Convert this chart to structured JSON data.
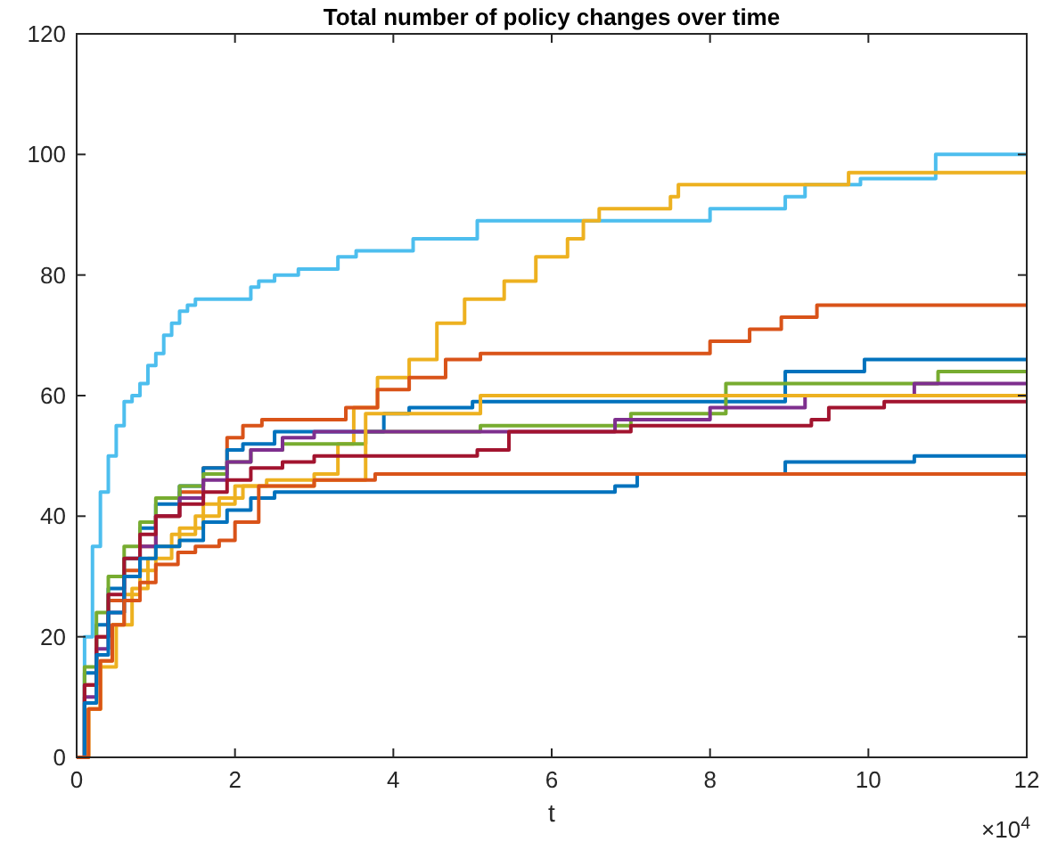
{
  "chart_data": {
    "type": "step",
    "title": "Total number of policy changes over time",
    "xlabel": "t",
    "annotations": [
      "×10$^{4}$"
    ],
    "xlim": [
      0,
      12
    ],
    "xticks": [
      0,
      2,
      4,
      6,
      8,
      10,
      12
    ],
    "ylim": [
      0,
      120
    ],
    "yticks": [
      0,
      20,
      40,
      60,
      80,
      100,
      120
    ],
    "grid": false,
    "line_style": "solid",
    "series": [
      {
        "color": "#4dbeee",
        "x": [
          0,
          0.1,
          0.2,
          0.3,
          0.4,
          0.5,
          0.6,
          0.7,
          0.8,
          0.9,
          1.0,
          1.1,
          1.2,
          1.3,
          1.4,
          1.5,
          2.1,
          2.2,
          2.3,
          2.5,
          2.8,
          3.3,
          3.53,
          4.25,
          5.06,
          6.5,
          8.0,
          8.95,
          9.2,
          9.9,
          10.85,
          12
        ],
        "values": [
          0,
          20,
          35,
          44,
          50,
          55,
          59,
          60,
          62,
          65,
          67,
          70,
          72,
          74,
          75,
          76,
          76,
          78,
          79,
          80,
          81,
          83,
          84,
          86,
          89,
          89,
          91,
          93,
          95,
          96,
          100,
          100
        ]
      },
      {
        "color": "#edb120",
        "x": [
          0,
          0.15,
          0.3,
          0.45,
          0.6,
          0.8,
          1.0,
          1.3,
          1.6,
          2.0,
          2.4,
          3.0,
          3.3,
          3.5,
          3.8,
          4.2,
          4.55,
          4.9,
          5.4,
          5.8,
          6.2,
          6.4,
          6.6,
          7.5,
          7.6,
          9.75,
          12
        ],
        "values": [
          0,
          8,
          16,
          22,
          27,
          31,
          35,
          38,
          42,
          45,
          46,
          47,
          52,
          58,
          63,
          66,
          72,
          76,
          79,
          83,
          86,
          89,
          91,
          93,
          95,
          97,
          97
        ]
      },
      {
        "color": "#d95319",
        "x": [
          0,
          0.1,
          0.25,
          0.4,
          0.6,
          0.8,
          1.0,
          1.3,
          1.6,
          1.9,
          2.1,
          2.34,
          3.4,
          3.8,
          4.2,
          4.66,
          5.1,
          8.0,
          8.5,
          8.9,
          9.35,
          12
        ],
        "values": [
          0,
          12,
          20,
          26,
          31,
          35,
          40,
          44,
          48,
          53,
          55,
          56,
          58,
          61,
          63,
          66,
          67,
          69,
          71,
          73,
          75,
          75
        ]
      },
      {
        "color": "#0072bd",
        "x": [
          0,
          0.1,
          0.25,
          0.4,
          0.6,
          0.8,
          1.0,
          1.3,
          1.6,
          1.9,
          2.1,
          2.5,
          3.88,
          4.2,
          5.0,
          8.95,
          9.95,
          12
        ],
        "values": [
          0,
          14,
          22,
          28,
          33,
          38,
          42,
          45,
          48,
          51,
          52,
          54,
          57,
          58,
          59,
          64,
          66,
          66
        ]
      },
      {
        "color": "#77ac30",
        "x": [
          0,
          0.1,
          0.25,
          0.4,
          0.6,
          0.8,
          1.0,
          1.3,
          1.6,
          1.9,
          2.2,
          2.6,
          3.65,
          5.1,
          7.0,
          8.2,
          10.88,
          12
        ],
        "values": [
          0,
          15,
          24,
          30,
          35,
          39,
          43,
          45,
          47,
          49,
          51,
          52,
          54,
          55,
          57,
          62,
          64,
          64
        ]
      },
      {
        "color": "#7e2f8e",
        "x": [
          0,
          0.1,
          0.25,
          0.4,
          0.6,
          0.8,
          1.0,
          1.3,
          1.6,
          1.9,
          2.2,
          2.6,
          3.0,
          6.8,
          8.0,
          9.2,
          10.58,
          12
        ],
        "values": [
          0,
          10,
          18,
          24,
          30,
          35,
          40,
          43,
          46,
          49,
          51,
          53,
          54,
          56,
          58,
          60,
          62,
          62
        ]
      },
      {
        "color": "#edb120",
        "x": [
          0,
          0.15,
          0.3,
          0.5,
          0.7,
          0.9,
          1.2,
          1.5,
          1.8,
          2.1,
          2.5,
          3.0,
          3.65,
          5.1,
          12
        ],
        "values": [
          0,
          8,
          15,
          22,
          28,
          33,
          37,
          40,
          43,
          45,
          45,
          46,
          57,
          60,
          60
        ]
      },
      {
        "color": "#a2142f",
        "x": [
          0,
          0.1,
          0.25,
          0.4,
          0.6,
          0.8,
          1.0,
          1.3,
          1.6,
          1.9,
          2.2,
          2.6,
          3.0,
          5.06,
          5.46,
          7.0,
          8.0,
          9.28,
          9.5,
          10.2,
          12
        ],
        "values": [
          0,
          12,
          20,
          27,
          33,
          37,
          40,
          42,
          44,
          46,
          48,
          49,
          50,
          51,
          54,
          55,
          55,
          56,
          58,
          59,
          59
        ]
      },
      {
        "color": "#0072bd",
        "x": [
          0,
          0.1,
          0.25,
          0.4,
          0.6,
          0.8,
          1.0,
          1.3,
          1.6,
          1.9,
          2.2,
          2.5,
          6.8,
          7.08,
          8.95,
          10.58,
          12
        ],
        "values": [
          0,
          9,
          17,
          24,
          30,
          33,
          35,
          36,
          39,
          41,
          43,
          44,
          45,
          47,
          49,
          50,
          50
        ]
      },
      {
        "color": "#d95319",
        "x": [
          0,
          0.15,
          0.3,
          0.45,
          0.6,
          0.8,
          1.0,
          1.28,
          1.5,
          1.8,
          2.0,
          2.3,
          3.0,
          3.77,
          12
        ],
        "values": [
          0,
          8,
          16,
          22,
          26,
          29,
          32,
          34,
          35,
          36,
          39,
          45,
          46,
          47,
          47
        ]
      }
    ]
  }
}
